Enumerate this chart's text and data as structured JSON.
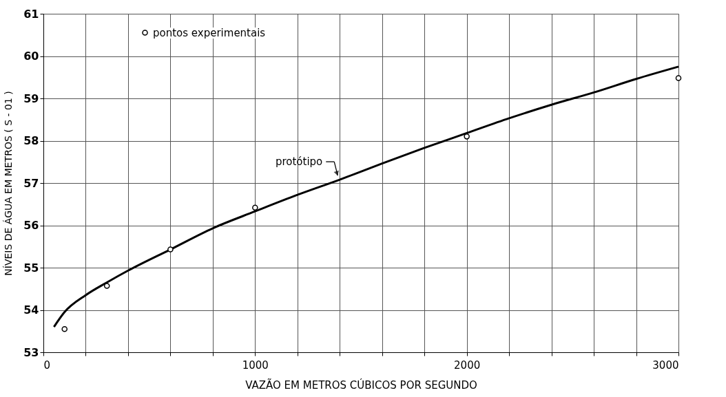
{
  "chart_data": {
    "type": "line",
    "xlabel": "VAZÃO EM METROS CÚBICOS POR SEGUNDO",
    "ylabel": "NÍVEIS DE ÁGUA EM METROS ( S - 01 )",
    "xlim": [
      0,
      3000
    ],
    "ylim": [
      53,
      61
    ],
    "xticks": [
      0,
      {
        "value": 200,
        "label": null
      },
      {
        "value": 400,
        "label": null
      },
      {
        "value": 600,
        "label": null
      },
      {
        "value": 800,
        "label": null
      },
      1000,
      {
        "value": 1200,
        "label": null
      },
      {
        "value": 1400,
        "label": null
      },
      {
        "value": 1600,
        "label": null
      },
      {
        "value": 1800,
        "label": null
      },
      2000,
      {
        "value": 2200,
        "label": null
      },
      {
        "value": 2400,
        "label": null
      },
      {
        "value": 2600,
        "label": null
      },
      {
        "value": 2800,
        "label": null
      },
      3000
    ],
    "yticks": [
      53,
      54,
      55,
      56,
      57,
      58,
      59,
      60,
      61
    ],
    "grid": true,
    "legend": "top left",
    "series": [
      {
        "name": "protótipo",
        "line_style": "solid",
        "color": "#000000",
        "x": [
          50,
          100,
          200,
          300,
          400,
          600,
          800,
          1000,
          1200,
          1400,
          1600,
          1800,
          2000,
          2200,
          2400,
          2600,
          2800,
          3000
        ],
        "values": [
          53.6,
          53.95,
          54.35,
          54.65,
          54.93,
          55.43,
          55.93,
          56.33,
          56.72,
          57.08,
          57.46,
          57.83,
          58.18,
          58.53,
          58.85,
          59.14,
          59.46,
          59.75
        ]
      },
      {
        "name": "pontos experimentais",
        "type": "scatter",
        "color": "#000000",
        "marker": "circle",
        "x": [
          100,
          300,
          600,
          1000,
          2000,
          3000
        ],
        "values": [
          53.55,
          54.57,
          55.43,
          56.42,
          58.1,
          59.48
        ]
      }
    ]
  }
}
